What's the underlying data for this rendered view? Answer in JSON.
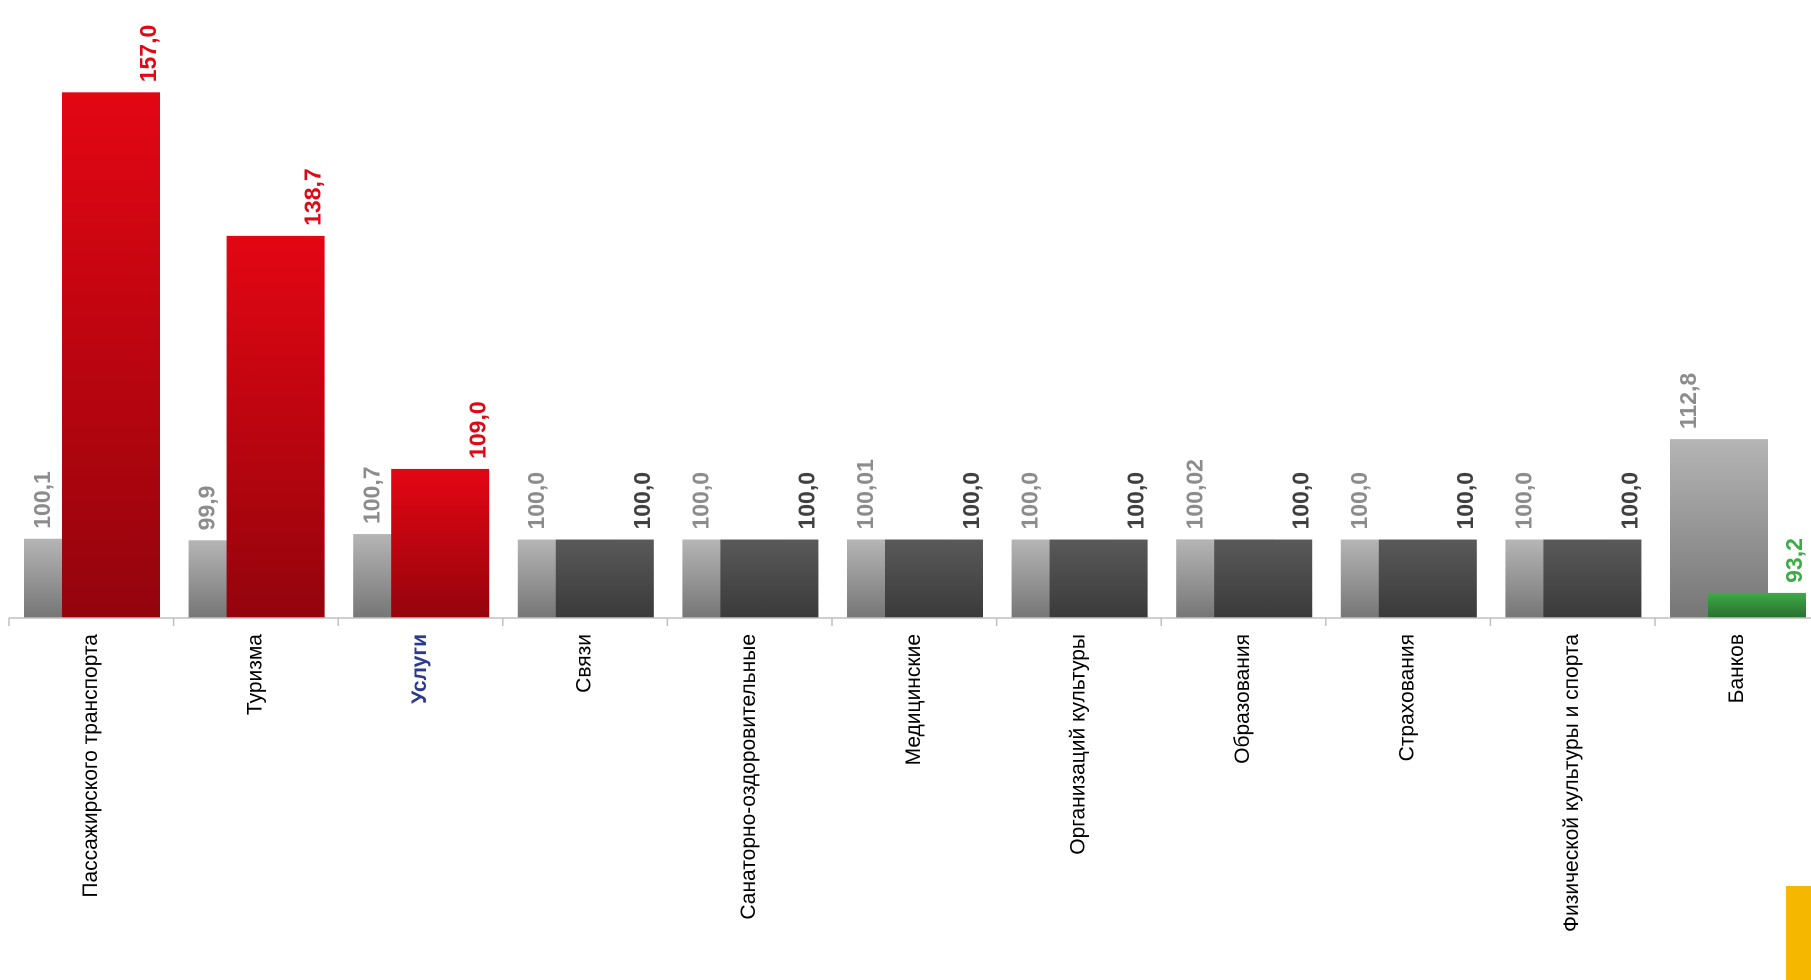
{
  "chart_data": {
    "type": "bar",
    "categories": [
      "Пассажирского транспорта",
      "Туризма",
      "Услуги",
      "Связи",
      "Санаторно-оздоровительные",
      "Медицинские",
      "Организаций культуры",
      "Образования",
      "Страхования",
      "Физической культуры и спорта",
      "Банков"
    ],
    "highlight_category": 2,
    "highlight_color": "#2b3990",
    "series": [
      {
        "color": "#b5b5b5",
        "label_color": "#8c8c8c",
        "values": [
          100.1,
          99.9,
          100.7,
          100.0,
          100.0,
          100.01,
          100.0,
          100.02,
          100.0,
          100.0,
          112.8
        ],
        "value_labels": [
          "100,1",
          "99,9",
          "100,7",
          "100,0",
          "100,0",
          "100,01",
          "100,0",
          "100,02",
          "100,0",
          "100,0",
          "112,8"
        ]
      },
      {
        "colors": [
          "#e30613",
          "#e30613",
          "#e30613",
          "#595959",
          "#595959",
          "#595959",
          "#595959",
          "#595959",
          "#595959",
          "#595959",
          "#3faa48"
        ],
        "label_colors": [
          "#e30613",
          "#e30613",
          "#e30613",
          "#404040",
          "#404040",
          "#404040",
          "#404040",
          "#404040",
          "#404040",
          "#404040",
          "#3faa48"
        ],
        "values": [
          157.0,
          138.7,
          109.0,
          100.0,
          100.0,
          100.0,
          100.0,
          100.0,
          100.0,
          100.0,
          93.2
        ],
        "value_labels": [
          "157,0",
          "138,7",
          "109,0",
          "100,0",
          "100,0",
          "100,0",
          "100,0",
          "100,0",
          "100,0",
          "100,0",
          "93,2"
        ]
      }
    ],
    "ylim": [
      90,
      168
    ]
  }
}
